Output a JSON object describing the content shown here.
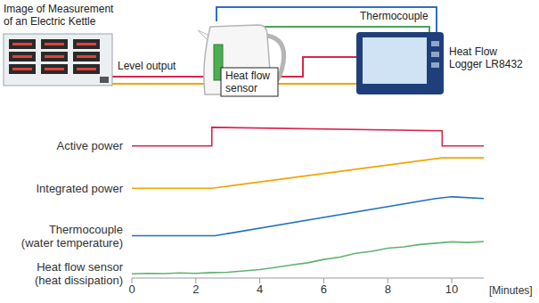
{
  "diagram": {
    "caption": [
      "Image of Measurement",
      "of an Electric Kettle"
    ],
    "thermocouple": "Thermocouple",
    "sensor": [
      "Heat flow",
      "sensor"
    ],
    "level_output": "Level output",
    "logger": [
      "Heat Flow",
      "Logger LR8432"
    ]
  },
  "chart_data": {
    "type": "line",
    "xlabel": "[Minutes]",
    "xlim": [
      0,
      11
    ],
    "xticks": [
      0,
      2,
      4,
      6,
      8,
      10
    ],
    "ylim": [
      0,
      100
    ],
    "tick_labels": "x",
    "series": [
      {
        "name": "Active power",
        "color": "#d9254b",
        "x": [
          0,
          2.5,
          2.5,
          9.7,
          9.7,
          11
        ],
        "values": [
          78,
          78,
          89,
          87,
          78,
          78
        ]
      },
      {
        "name": "Integrated power",
        "color": "#f0a500",
        "x": [
          0,
          2.5,
          9.7,
          11
        ],
        "values": [
          53,
          53,
          71,
          71
        ]
      },
      {
        "name": "Thermocouple (water temperature)",
        "color": "#1f6fc4",
        "x": [
          0,
          2.6,
          9.5,
          10,
          11
        ],
        "values": [
          25,
          25,
          47,
          48,
          47
        ]
      },
      {
        "name": "Heat flow sensor (heat dissipation)",
        "color": "#5fb36f",
        "x": [
          0,
          0.5,
          1,
          1.5,
          2,
          2.5,
          3,
          3.5,
          4,
          4.5,
          5,
          5.5,
          6,
          6.5,
          7,
          7.5,
          8,
          8.5,
          9,
          9.5,
          10,
          10.5,
          11
        ],
        "values": [
          2.5,
          2.8,
          2.6,
          3.0,
          2.8,
          3.2,
          3.4,
          4.2,
          5.0,
          6.3,
          7.8,
          9.0,
          11.0,
          12.4,
          14.6,
          15.8,
          17.6,
          18.4,
          19.8,
          20.6,
          21.4,
          21.0,
          21.6
        ]
      }
    ]
  }
}
